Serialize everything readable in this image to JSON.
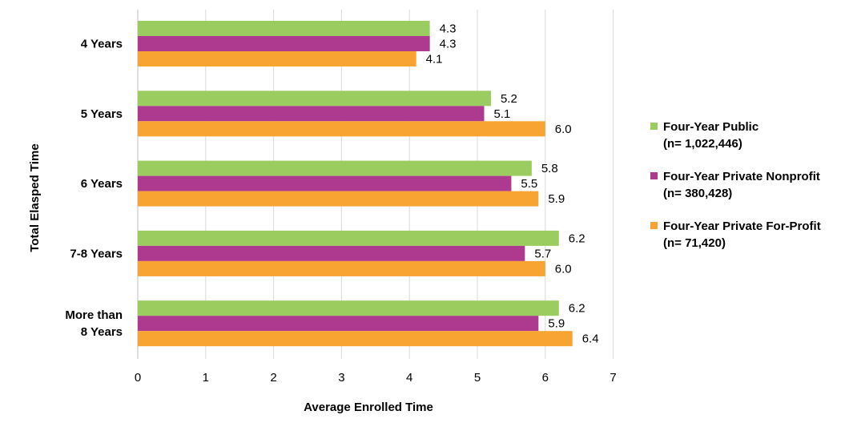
{
  "chart_data": {
    "type": "bar",
    "orientation": "horizontal",
    "categories": [
      [
        "4 Years"
      ],
      [
        "5 Years"
      ],
      [
        "6 Years"
      ],
      [
        "7-8 Years"
      ],
      [
        "More than",
        "8 Years"
      ]
    ],
    "series": [
      {
        "name": "Four-Year Public",
        "n_label": "(n= 1,022,446)",
        "color": "#9BCC5F",
        "values": [
          4.3,
          5.2,
          5.8,
          6.2,
          6.2
        ],
        "labels": [
          "4.3",
          "5.2",
          "5.8",
          "6.2",
          "6.2"
        ]
      },
      {
        "name": "Four-Year Private Nonprofit",
        "n_label": "(n= 380,428)",
        "color": "#AD3A8E",
        "values": [
          4.3,
          5.1,
          5.5,
          5.7,
          5.9
        ],
        "labels": [
          "4.3",
          "5.1",
          "5.5",
          "5.7",
          "5.9"
        ]
      },
      {
        "name": "Four-Year Private For-Profit",
        "n_label": "(n= 71,420)",
        "color": "#F7A433",
        "values": [
          4.1,
          6.0,
          5.9,
          6.0,
          6.4
        ],
        "labels": [
          "4.1",
          "6.0",
          "5.9",
          "6.0",
          "6.4"
        ]
      }
    ],
    "xlabel": "Average Enrolled Time",
    "ylabel": "Total Elasped Time",
    "xlim": [
      0,
      7
    ],
    "xticks": [
      "0",
      "1",
      "2",
      "3",
      "4",
      "5",
      "6",
      "7"
    ],
    "grid": true,
    "legend_position": "right"
  }
}
